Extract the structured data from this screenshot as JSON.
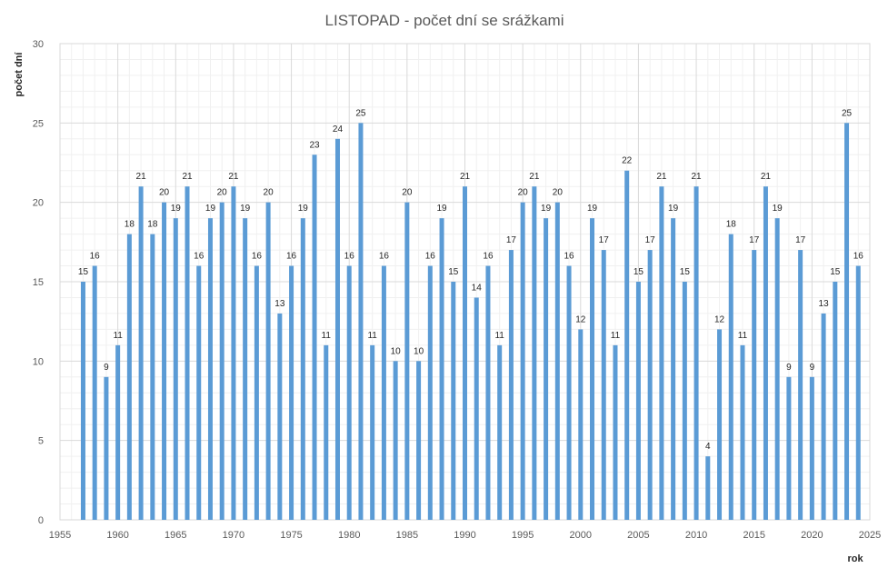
{
  "chart_data": {
    "type": "bar",
    "title": "LISTOPAD - počet dní se srážkami",
    "xlabel": "rok",
    "ylabel": "počet dní",
    "xlim": [
      1955,
      2025
    ],
    "ylim": [
      0,
      30
    ],
    "x_ticks": [
      1955,
      1960,
      1965,
      1970,
      1975,
      1980,
      1985,
      1990,
      1995,
      2000,
      2005,
      2010,
      2015,
      2020,
      2025
    ],
    "y_ticks": [
      0,
      5,
      10,
      15,
      20,
      25,
      30
    ],
    "grid": true,
    "bar_color": "#5B9BD5",
    "x": [
      1957,
      1958,
      1959,
      1960,
      1961,
      1962,
      1963,
      1964,
      1965,
      1966,
      1967,
      1968,
      1969,
      1970,
      1971,
      1972,
      1973,
      1974,
      1975,
      1976,
      1977,
      1978,
      1979,
      1980,
      1981,
      1982,
      1983,
      1984,
      1985,
      1986,
      1987,
      1988,
      1989,
      1990,
      1991,
      1992,
      1993,
      1994,
      1995,
      1996,
      1997,
      1998,
      1999,
      2000,
      2001,
      2002,
      2003,
      2004,
      2005,
      2006,
      2007,
      2008,
      2009,
      2010,
      2011,
      2012,
      2013,
      2014,
      2015,
      2016,
      2017,
      2018,
      2019,
      2020,
      2021,
      2022,
      2023,
      2024
    ],
    "values": [
      15,
      16,
      9,
      11,
      18,
      21,
      18,
      20,
      19,
      21,
      16,
      19,
      20,
      21,
      19,
      16,
      20,
      13,
      16,
      19,
      23,
      11,
      24,
      16,
      25,
      11,
      16,
      10,
      20,
      10,
      16,
      19,
      15,
      21,
      14,
      16,
      11,
      17,
      20,
      21,
      19,
      20,
      16,
      12,
      19,
      17,
      11,
      22,
      15,
      17,
      21,
      19,
      15,
      21,
      4,
      12,
      18,
      11,
      17,
      21,
      19,
      9,
      17,
      9,
      13,
      15,
      25,
      16
    ]
  }
}
